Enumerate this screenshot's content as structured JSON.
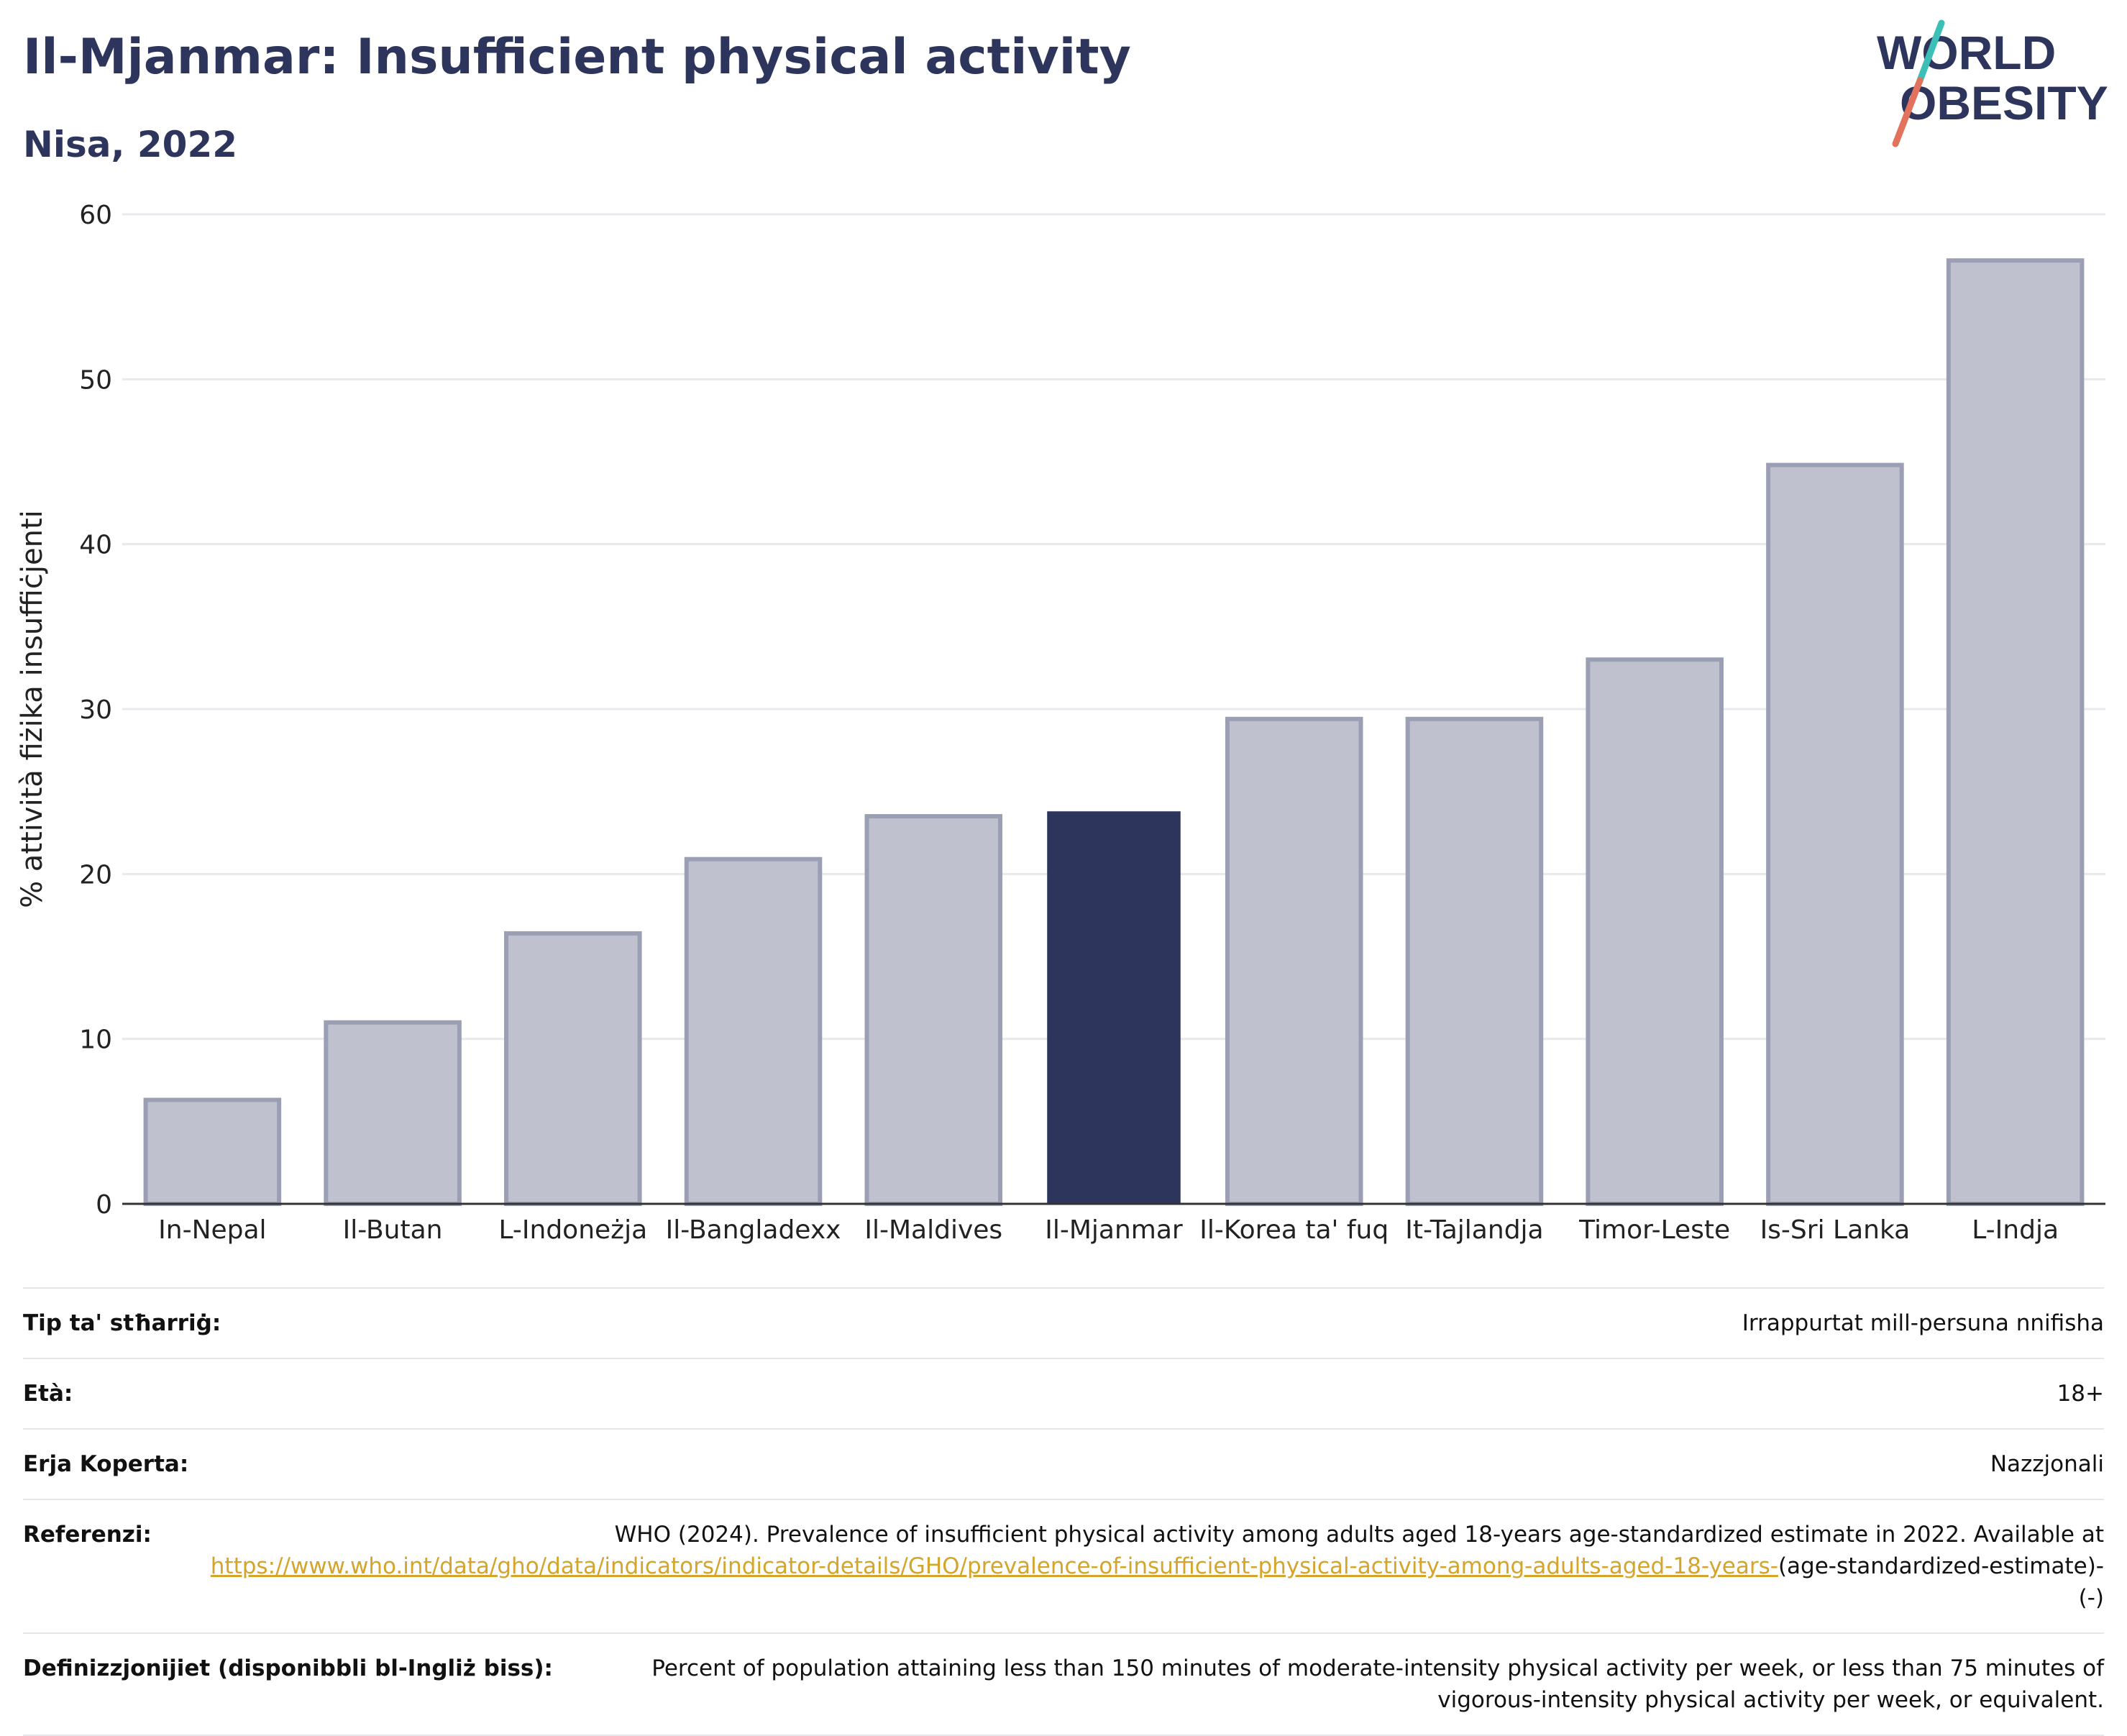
{
  "header": {
    "title": "Il-Mjanmar: Insufficient physical activity",
    "subtitle": "Nisa, 2022"
  },
  "logo": {
    "line1": "WORLD",
    "line2": "OBESITY",
    "accent_colors": [
      "#3bbfb7",
      "#e2725b"
    ]
  },
  "colors": {
    "highlight_bar": "#2d355c",
    "other_bar_fill": "#bfc2ce",
    "other_bar_stroke": "#9a9fb3",
    "link": "#d4a52a"
  },
  "chart_data": {
    "type": "bar",
    "title": "",
    "xlabel": "",
    "ylabel": "% attività fiżika insuffiċjenti",
    "ylim": [
      0,
      60
    ],
    "yticks": [
      0,
      10,
      20,
      30,
      40,
      50,
      60
    ],
    "grid": true,
    "categories": [
      "In-Nepal",
      "Il-Butan",
      "L-Indoneżja",
      "Il-Bangladexx",
      "Il-Maldives",
      "Il-Mjanmar",
      "Il-Korea ta' fuq",
      "It-Tajlandja",
      "Timor-Leste",
      "Is-Sri Lanka",
      "L-Indja"
    ],
    "values": [
      6.3,
      11.0,
      16.4,
      20.9,
      23.5,
      23.8,
      29.4,
      29.4,
      33.0,
      44.8,
      57.2
    ],
    "highlight": "Il-Mjanmar"
  },
  "info": {
    "rows": [
      {
        "label": "Tip ta' stħarriġ:",
        "value": "Irrappurtat mill-persuna nnifisha"
      },
      {
        "label": "Età:",
        "value": "18+"
      },
      {
        "label": "Erja Koperta:",
        "value": "Nazzjonali"
      }
    ],
    "reference": {
      "label": "Referenzi:",
      "text": "WHO (2024). Prevalence of insufficient physical activity among adults aged 18-years age-standardized estimate in 2022. Available at",
      "link": "https://www.who.int/data/gho/data/indicators/indicator-details/GHO/prevalence-of-insufficient-physical-activity-among-adults-aged-18-years-",
      "suffix": "(age-standardized-estimate)-(-)"
    },
    "definition": {
      "label": "Definizzjonijiet (disponibbli bl-Ingliż biss):",
      "text": "Percent of population attaining less than 150 minutes of moderate-intensity physical activity per week, or less than 75 minutes of vigorous-intensity physical activity per week, or equivalent."
    }
  }
}
